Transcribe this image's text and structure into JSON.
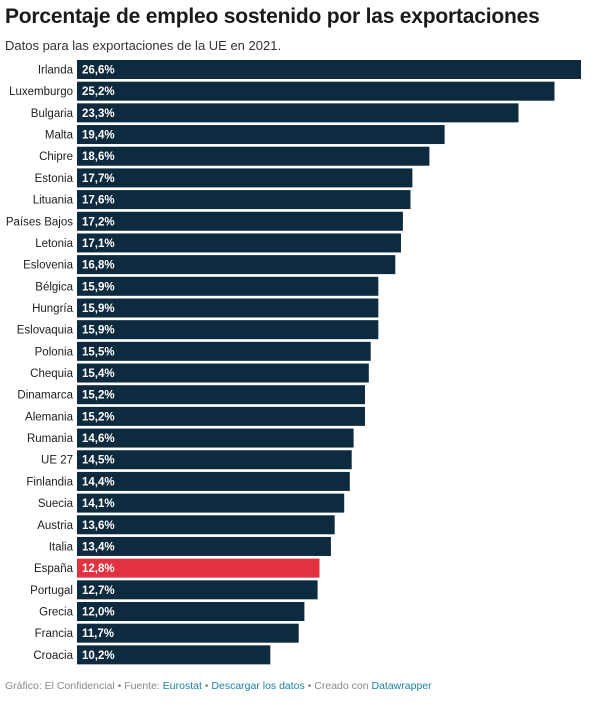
{
  "header": {
    "title": "Porcentaje de empleo sostenido por las exportaciones",
    "subtitle": "Datos para las exportaciones de la UE en 2021."
  },
  "colors": {
    "bar": "#0e2a3f",
    "highlight": "#e3323f",
    "label_text": "#ffffff"
  },
  "chart_data": {
    "type": "bar",
    "orientation": "horizontal",
    "categories": [
      "Irlanda",
      "Luxemburgo",
      "Bulgaria",
      "Malta",
      "Chipre",
      "Estonia",
      "Lituania",
      "Países Bajos",
      "Letonia",
      "Eslovenia",
      "Bélgica",
      "Hungría",
      "Eslovaquia",
      "Polonia",
      "Chequia",
      "Dinamarca",
      "Alemania",
      "Rumania",
      "UE 27",
      "Finlandia",
      "Suecia",
      "Austria",
      "Italia",
      "España",
      "Portugal",
      "Grecia",
      "Francia",
      "Croacia"
    ],
    "values": [
      26.6,
      25.2,
      23.3,
      19.4,
      18.6,
      17.7,
      17.6,
      17.2,
      17.1,
      16.8,
      15.9,
      15.9,
      15.9,
      15.5,
      15.4,
      15.2,
      15.2,
      14.6,
      14.5,
      14.4,
      14.1,
      13.6,
      13.4,
      12.8,
      12.7,
      12.0,
      11.7,
      10.2
    ],
    "labels": [
      "26,6%",
      "25,2%",
      "23,3%",
      "19,4%",
      "18,6%",
      "17,7%",
      "17,6%",
      "17,2%",
      "17,1%",
      "16,8%",
      "15,9%",
      "15,9%",
      "15,9%",
      "15,5%",
      "15,4%",
      "15,2%",
      "15,2%",
      "14,6%",
      "14,5%",
      "14,4%",
      "14,1%",
      "13,6%",
      "13,4%",
      "12,8%",
      "12,7%",
      "12,0%",
      "11,7%",
      "10,2%"
    ],
    "highlight": "España",
    "xlim": [
      0,
      26.6
    ],
    "grid": false,
    "legend": "none"
  },
  "footer": {
    "credit": "Gráfico: El Confidencial",
    "sep": " • ",
    "source_prefix": "Fuente: ",
    "source": "Eurostat",
    "download": "Descargar los datos",
    "made_with": "Creado con ",
    "tool": "Datawrapper"
  }
}
